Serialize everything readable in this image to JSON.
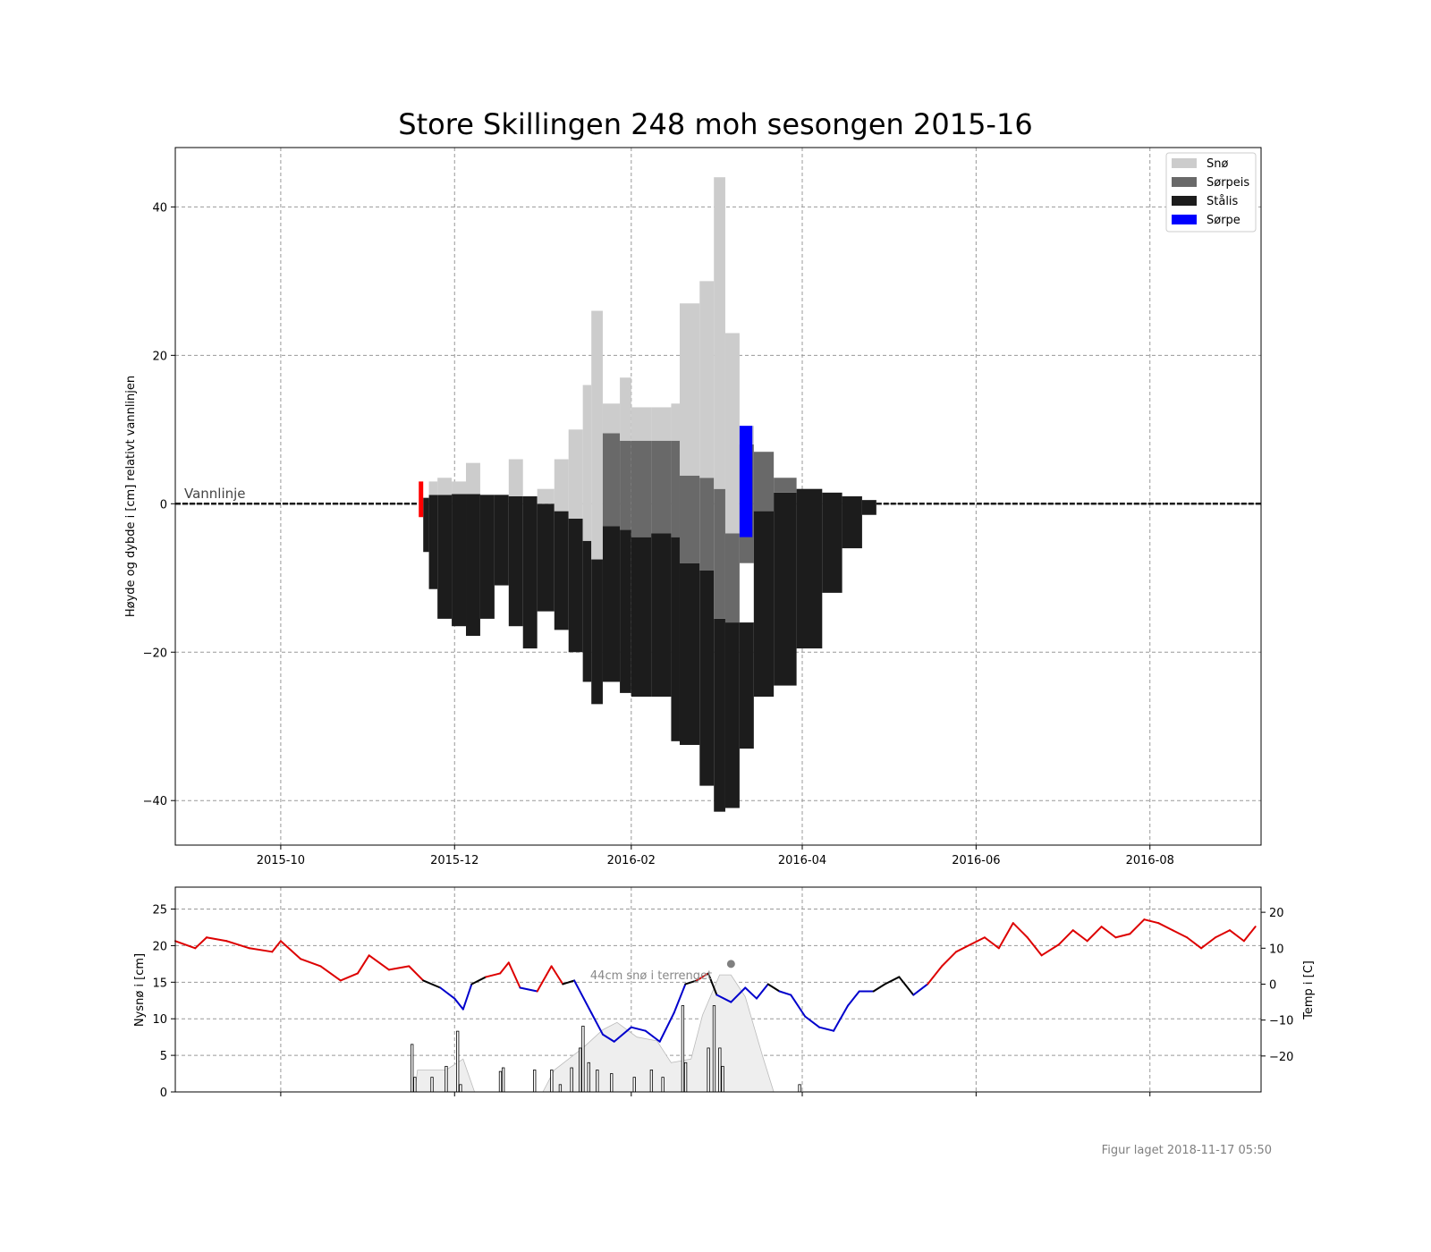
{
  "chart_data": [
    {
      "type": "bar",
      "title": "Store Skillingen 248 moh sesongen 2015-16",
      "ylabel": "Høyde og dybde i [cm] relativt vannlinjen",
      "xlabel": "",
      "xlim": [
        "2015-08-25",
        "2016-09-09"
      ],
      "ylim": [
        -46,
        48
      ],
      "xticks": [
        "2015-10",
        "2015-12",
        "2016-02",
        "2016-04",
        "2016-06",
        "2016-08"
      ],
      "yticks": [
        40,
        20,
        0,
        -20,
        -40
      ],
      "grid": true,
      "legend_position": "top-right",
      "legend": [
        {
          "name": "Snø",
          "color": "#cccccc"
        },
        {
          "name": "Sørpeis",
          "color": "#696969"
        },
        {
          "name": "Stålis",
          "color": "#1c1c1c"
        },
        {
          "name": "Sørpe",
          "color": "#0000ff"
        }
      ],
      "water_line_label": "Vannlinje",
      "water_line_y": 0,
      "ice_series": [
        {
          "date": "2015-11-20",
          "stalis": [
            0.8,
            -6.5
          ],
          "sorpeis": null,
          "sno": null
        },
        {
          "date": "2015-11-22",
          "stalis": [
            1.2,
            -11.5
          ],
          "sorpeis": null,
          "sno": 3.0
        },
        {
          "date": "2015-11-25",
          "stalis": [
            1.2,
            -15.5
          ],
          "sorpeis": null,
          "sno": 3.5
        },
        {
          "date": "2015-11-30",
          "stalis": [
            1.3,
            -16.5
          ],
          "sorpeis": null,
          "sno": 3.0
        },
        {
          "date": "2015-12-05",
          "stalis": [
            1.3,
            -17.8
          ],
          "sorpeis": null,
          "sno": 5.5
        },
        {
          "date": "2015-12-10",
          "stalis": [
            1.2,
            -15.5
          ],
          "sorpeis": null,
          "sno": 1.2
        },
        {
          "date": "2015-12-15",
          "stalis": [
            1.2,
            -11.0
          ],
          "sorpeis": null,
          "sno": 1.2
        },
        {
          "date": "2015-12-20",
          "stalis": [
            1.0,
            -16.5
          ],
          "sorpeis": null,
          "sno": 6.0
        },
        {
          "date": "2015-12-25",
          "stalis": [
            1.0,
            -19.5
          ],
          "sorpeis": null,
          "sno": 1.0
        },
        {
          "date": "2015-12-30",
          "stalis": [
            0.0,
            -14.5
          ],
          "sorpeis": null,
          "sno": 2.0
        },
        {
          "date": "2016-01-05",
          "stalis": [
            -1.0,
            -17.0
          ],
          "sorpeis": null,
          "sno": 6.0
        },
        {
          "date": "2016-01-10",
          "stalis": [
            -2.0,
            -20.0
          ],
          "sorpeis": null,
          "sno": 10.0
        },
        {
          "date": "2016-01-15",
          "stalis": [
            -5.0,
            -24.0
          ],
          "sorpeis": null,
          "sno": 16.0
        },
        {
          "date": "2016-01-18",
          "stalis": [
            -7.5,
            -27.0
          ],
          "sorpeis": null,
          "sno": 26.0
        },
        {
          "date": "2016-01-22",
          "stalis": [
            -3.0,
            -24.0
          ],
          "sorpeis": [
            9.5,
            -3.0
          ],
          "sno": 13.5
        },
        {
          "date": "2016-01-28",
          "stalis": [
            -3.5,
            -25.5
          ],
          "sorpeis": [
            8.5,
            -3.5
          ],
          "sno": 17.0
        },
        {
          "date": "2016-02-01",
          "stalis": [
            -4.5,
            -26.0
          ],
          "sorpeis": [
            8.5,
            -4.5
          ],
          "sno": 13.0
        },
        {
          "date": "2016-02-08",
          "stalis": [
            -4.0,
            -26.0
          ],
          "sorpeis": [
            8.5,
            -4.0
          ],
          "sno": 13.0
        },
        {
          "date": "2016-02-15",
          "stalis": [
            -4.5,
            -32.0
          ],
          "sorpeis": [
            8.5,
            -4.5
          ],
          "sno": 13.5
        },
        {
          "date": "2016-02-18",
          "stalis": [
            -8.0,
            -32.5
          ],
          "sorpeis": [
            3.8,
            -8.0
          ],
          "sno": 27.0
        },
        {
          "date": "2016-02-25",
          "stalis": [
            -9.0,
            -38.0
          ],
          "sorpeis": [
            3.5,
            -9.0
          ],
          "sno": 30.0
        },
        {
          "date": "2016-03-01",
          "stalis": [
            -15.5,
            -41.5
          ],
          "sorpeis": [
            2.0,
            -15.5
          ],
          "sno": 44.0
        },
        {
          "date": "2016-03-05",
          "stalis": [
            -16.0,
            -41.0
          ],
          "sorpeis": [
            -4.0,
            -16.0
          ],
          "sno": 23.0
        },
        {
          "date": "2016-03-10",
          "stalis": [
            -16.0,
            -33.0
          ],
          "sorpeis": [
            8.0,
            -8.0
          ],
          "sno": 10.5,
          "sorpe": [
            10.5,
            -4.5
          ]
        },
        {
          "date": "2016-03-15",
          "stalis": [
            -1.0,
            -26.0
          ],
          "sorpeis": [
            7.0,
            -1.0
          ],
          "sno": null
        },
        {
          "date": "2016-03-22",
          "stalis": [
            1.5,
            -24.5
          ],
          "sorpeis": [
            3.5,
            1.5
          ],
          "sno": null
        },
        {
          "date": "2016-03-30",
          "stalis": [
            2.0,
            -19.5
          ],
          "sorpeis": null,
          "sno": null
        },
        {
          "date": "2016-04-08",
          "stalis": [
            1.5,
            -12.0
          ],
          "sorpeis": null,
          "sno": null
        },
        {
          "date": "2016-04-15",
          "stalis": [
            1.0,
            -6.0
          ],
          "sorpeis": null,
          "sno": null
        },
        {
          "date": "2016-04-22",
          "stalis": [
            0.5,
            -1.5
          ],
          "sorpeis": null,
          "sno": null
        }
      ]
    },
    {
      "type": "line",
      "title": "",
      "ylabel": "Nysnø i [cm]",
      "y2label": "Temp i [C]",
      "ylim": [
        0,
        28
      ],
      "y2lim": [
        -30,
        27
      ],
      "yticks": [
        25,
        20,
        15,
        10,
        5,
        0
      ],
      "y2ticks": [
        20,
        10,
        0,
        -10,
        -20
      ],
      "grid": true,
      "annotation": "44cm snø i terrenget",
      "new_snow_bars": [
        {
          "date": "2015-11-16",
          "value": 6.5
        },
        {
          "date": "2015-11-17",
          "value": 2.0
        },
        {
          "date": "2015-11-23",
          "value": 2.0
        },
        {
          "date": "2015-11-28",
          "value": 3.5
        },
        {
          "date": "2015-12-02",
          "value": 8.3
        },
        {
          "date": "2015-12-03",
          "value": 1.0
        },
        {
          "date": "2015-12-17",
          "value": 2.8
        },
        {
          "date": "2015-12-18",
          "value": 3.3
        },
        {
          "date": "2015-12-29",
          "value": 3.0
        },
        {
          "date": "2016-01-04",
          "value": 3.0
        },
        {
          "date": "2016-01-07",
          "value": 1.0
        },
        {
          "date": "2016-01-11",
          "value": 3.3
        },
        {
          "date": "2016-01-14",
          "value": 6.0
        },
        {
          "date": "2016-01-15",
          "value": 9.0
        },
        {
          "date": "2016-01-17",
          "value": 4.0
        },
        {
          "date": "2016-01-20",
          "value": 3.0
        },
        {
          "date": "2016-01-25",
          "value": 2.5
        },
        {
          "date": "2016-02-02",
          "value": 2.0
        },
        {
          "date": "2016-02-08",
          "value": 3.0
        },
        {
          "date": "2016-02-12",
          "value": 2.0
        },
        {
          "date": "2016-02-19",
          "value": 11.8
        },
        {
          "date": "2016-02-20",
          "value": 4.0
        },
        {
          "date": "2016-02-28",
          "value": 6.0
        },
        {
          "date": "2016-03-01",
          "value": 11.8
        },
        {
          "date": "2016-03-03",
          "value": 6.0
        },
        {
          "date": "2016-03-04",
          "value": 3.5
        },
        {
          "date": "2016-03-31",
          "value": 1.0
        }
      ],
      "snow_depth_area": [
        {
          "date": "2015-11-17",
          "value": 0.0
        },
        {
          "date": "2015-11-18",
          "value": 3.0
        },
        {
          "date": "2015-11-28",
          "value": 3.0
        },
        {
          "date": "2015-12-04",
          "value": 4.5
        },
        {
          "date": "2015-12-08",
          "value": 0.0
        },
        {
          "date": "2016-01-01",
          "value": 0.0
        },
        {
          "date": "2016-01-05",
          "value": 3.0
        },
        {
          "date": "2016-01-15",
          "value": 6.0
        },
        {
          "date": "2016-01-22",
          "value": 8.5
        },
        {
          "date": "2016-01-27",
          "value": 9.5
        },
        {
          "date": "2016-02-03",
          "value": 7.5
        },
        {
          "date": "2016-02-10",
          "value": 7.0
        },
        {
          "date": "2016-02-15",
          "value": 4.0
        },
        {
          "date": "2016-02-22",
          "value": 4.5
        },
        {
          "date": "2016-02-26",
          "value": 10.5
        },
        {
          "date": "2016-03-03",
          "value": 16.0
        },
        {
          "date": "2016-03-07",
          "value": 16.0
        },
        {
          "date": "2016-03-12",
          "value": 13.0
        },
        {
          "date": "2016-03-18",
          "value": 5.0
        },
        {
          "date": "2016-03-22",
          "value": 0.0
        }
      ],
      "snow_depth_marker": {
        "date": "2016-03-07",
        "value": 17.5
      },
      "temperature": [
        {
          "date": "2015-08-25",
          "value": 12
        },
        {
          "date": "2015-09-01",
          "value": 10
        },
        {
          "date": "2015-09-05",
          "value": 13
        },
        {
          "date": "2015-09-12",
          "value": 12
        },
        {
          "date": "2015-09-20",
          "value": 10
        },
        {
          "date": "2015-09-28",
          "value": 9
        },
        {
          "date": "2015-10-01",
          "value": 12
        },
        {
          "date": "2015-10-08",
          "value": 7
        },
        {
          "date": "2015-10-15",
          "value": 5
        },
        {
          "date": "2015-10-22",
          "value": 1
        },
        {
          "date": "2015-10-28",
          "value": 3
        },
        {
          "date": "2015-11-01",
          "value": 8
        },
        {
          "date": "2015-11-08",
          "value": 4
        },
        {
          "date": "2015-11-15",
          "value": 5
        },
        {
          "date": "2015-11-20",
          "value": 1
        },
        {
          "date": "2015-11-26",
          "value": -1
        },
        {
          "date": "2015-12-01",
          "value": -4
        },
        {
          "date": "2015-12-04",
          "value": -7
        },
        {
          "date": "2015-12-07",
          "value": 0
        },
        {
          "date": "2015-12-12",
          "value": 2
        },
        {
          "date": "2015-12-17",
          "value": 3
        },
        {
          "date": "2015-12-20",
          "value": 6
        },
        {
          "date": "2015-12-24",
          "value": -1
        },
        {
          "date": "2015-12-30",
          "value": -2
        },
        {
          "date": "2016-01-04",
          "value": 5
        },
        {
          "date": "2016-01-08",
          "value": 0
        },
        {
          "date": "2016-01-12",
          "value": 1
        },
        {
          "date": "2016-01-18",
          "value": -8
        },
        {
          "date": "2016-01-22",
          "value": -14
        },
        {
          "date": "2016-01-26",
          "value": -16
        },
        {
          "date": "2016-02-01",
          "value": -12
        },
        {
          "date": "2016-02-06",
          "value": -13
        },
        {
          "date": "2016-02-11",
          "value": -16
        },
        {
          "date": "2016-02-16",
          "value": -8
        },
        {
          "date": "2016-02-20",
          "value": 0
        },
        {
          "date": "2016-02-24",
          "value": 1
        },
        {
          "date": "2016-02-28",
          "value": 3
        },
        {
          "date": "2016-03-02",
          "value": -3
        },
        {
          "date": "2016-03-07",
          "value": -5
        },
        {
          "date": "2016-03-12",
          "value": -1
        },
        {
          "date": "2016-03-16",
          "value": -4
        },
        {
          "date": "2016-03-20",
          "value": 0
        },
        {
          "date": "2016-03-24",
          "value": -2
        },
        {
          "date": "2016-03-28",
          "value": -3
        },
        {
          "date": "2016-04-02",
          "value": -9
        },
        {
          "date": "2016-04-07",
          "value": -12
        },
        {
          "date": "2016-04-12",
          "value": -13
        },
        {
          "date": "2016-04-17",
          "value": -6
        },
        {
          "date": "2016-04-21",
          "value": -2
        },
        {
          "date": "2016-04-26",
          "value": -2
        },
        {
          "date": "2016-04-30",
          "value": 0
        },
        {
          "date": "2016-05-05",
          "value": 2
        },
        {
          "date": "2016-05-10",
          "value": -3
        },
        {
          "date": "2016-05-15",
          "value": 0
        },
        {
          "date": "2016-05-20",
          "value": 5
        },
        {
          "date": "2016-05-25",
          "value": 9
        },
        {
          "date": "2016-05-30",
          "value": 11
        },
        {
          "date": "2016-06-04",
          "value": 13
        },
        {
          "date": "2016-06-09",
          "value": 10
        },
        {
          "date": "2016-06-14",
          "value": 17
        },
        {
          "date": "2016-06-19",
          "value": 13
        },
        {
          "date": "2016-06-24",
          "value": 8
        },
        {
          "date": "2016-06-30",
          "value": 11
        },
        {
          "date": "2016-07-05",
          "value": 15
        },
        {
          "date": "2016-07-10",
          "value": 12
        },
        {
          "date": "2016-07-15",
          "value": 16
        },
        {
          "date": "2016-07-20",
          "value": 13
        },
        {
          "date": "2016-07-25",
          "value": 14
        },
        {
          "date": "2016-07-30",
          "value": 18
        },
        {
          "date": "2016-08-04",
          "value": 17
        },
        {
          "date": "2016-08-09",
          "value": 15
        },
        {
          "date": "2016-08-14",
          "value": 13
        },
        {
          "date": "2016-08-19",
          "value": 10
        },
        {
          "date": "2016-08-24",
          "value": 13
        },
        {
          "date": "2016-08-29",
          "value": 15
        },
        {
          "date": "2016-09-03",
          "value": 12
        },
        {
          "date": "2016-09-07",
          "value": 16
        }
      ]
    }
  ],
  "footer": "Figur laget 2018-11-17 05:50",
  "colors": {
    "sno": "#cccccc",
    "sorpeis": "#696969",
    "stalis": "#1c1c1c",
    "sorpe": "#0000ff",
    "temp_warm": "#dd0000",
    "temp_cold": "#0000cc",
    "temp_mid": "#000000",
    "start_marker": "#ff0000",
    "snow_area": "#eeeeee",
    "snow_marker": "#808080"
  }
}
